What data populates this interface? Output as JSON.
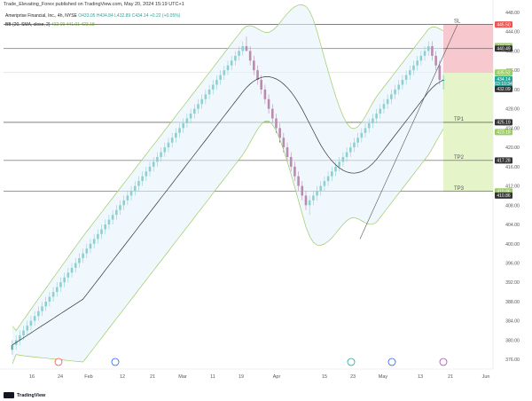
{
  "header": {
    "published": "Trade_Elevating_Forex published on TradingView.com, May 20, 2024 15:19 UTC+1",
    "symbol_line_name": "Ameriprise Financial, Inc., 4h, NYSE",
    "ohlc": "O433.05 H434.84 L432.89 C434.14 +0.22 (+0.05%)",
    "bb_line": "BB (20, SMA, close, 2)",
    "bb_values": "432.09 441.01 423.18"
  },
  "brand": {
    "label": "TradingView"
  },
  "colors": {
    "up": "#26a69a",
    "down": "#880e4f",
    "bb_band": "#9ccc65",
    "bb_mid": "#333333",
    "sl_zone": "#f8c8cf",
    "tp_zone": "#e6f5c9"
  },
  "levels": [
    {
      "name": "SL",
      "price": 445.5,
      "label": "SL"
    },
    {
      "name": "TP1",
      "price": 425.19,
      "label": "TP1"
    },
    {
      "name": "TP2",
      "price": 417.28,
      "label": "TP2"
    },
    {
      "name": "TP3",
      "price": 410.86,
      "label": "TP3"
    }
  ],
  "chart_data": {
    "type": "candlestick",
    "y_ticks": [
      376,
      380,
      384,
      388,
      392,
      396,
      400,
      404,
      408,
      412,
      416,
      420,
      424,
      428,
      432,
      436,
      440,
      444,
      448
    ],
    "y_tick_labels": [
      "376.00",
      "380.00",
      "384.00",
      "388.00",
      "392.00",
      "396.00",
      "400.00",
      "404.00",
      "408.00",
      "412.00",
      "416.00",
      "420.00",
      "424.00",
      "428.00",
      "432.00",
      "436.00",
      "440.00",
      "444.00",
      "448.00"
    ],
    "ylim": [
      374,
      448
    ],
    "x_labels": [
      "16",
      "24",
      "Feb",
      "12",
      "21",
      "Mar",
      "11",
      "19",
      "Apr",
      "15",
      "23",
      "May",
      "13",
      "21",
      "Jun"
    ],
    "price_labels": [
      {
        "text": "445.50",
        "price": 445.5,
        "color": "#ef5350"
      },
      {
        "text": "441.01",
        "price": 441.01,
        "color": "#9ccc65"
      },
      {
        "text": "440.49",
        "price": 440.49,
        "color": "#333333"
      },
      {
        "text": "435.52",
        "price": 435.52,
        "color": "#9ccc65"
      },
      {
        "text": "434.14",
        "price": 434.14,
        "color": "#26a69a"
      },
      {
        "text": "03:10:34",
        "price": 433.2,
        "color": "#26a69a"
      },
      {
        "text": "432.09",
        "price": 432.09,
        "color": "#333333"
      },
      {
        "text": "425.19",
        "price": 425.19,
        "color": "#333333"
      },
      {
        "text": "423.18",
        "price": 423.18,
        "color": "#9ccc65"
      },
      {
        "text": "417.28",
        "price": 417.28,
        "color": "#333333"
      },
      {
        "text": "410.86",
        "price": 410.86,
        "color": "#9ccc65"
      },
      {
        "text": "410.86",
        "price": 410.0,
        "color": "#333333"
      }
    ],
    "candles": [
      [
        378,
        380,
        377,
        379
      ],
      [
        379,
        381,
        378,
        380
      ],
      [
        380,
        382,
        379,
        381
      ],
      [
        381,
        383,
        380,
        382
      ],
      [
        382,
        384,
        381,
        383
      ],
      [
        383,
        385,
        382,
        384
      ],
      [
        384,
        386,
        383,
        385
      ],
      [
        385,
        387,
        384,
        386
      ],
      [
        386,
        388,
        385,
        387
      ],
      [
        387,
        389,
        386,
        388
      ],
      [
        388,
        390,
        387,
        389
      ],
      [
        389,
        391,
        388,
        390
      ],
      [
        390,
        392,
        389,
        391
      ],
      [
        391,
        393,
        390,
        392
      ],
      [
        392,
        394,
        391,
        393
      ],
      [
        393,
        395,
        392,
        394
      ],
      [
        394,
        396,
        393,
        395
      ],
      [
        395,
        397,
        394,
        396
      ],
      [
        396,
        398,
        395,
        397
      ],
      [
        397,
        399,
        396,
        398
      ],
      [
        398,
        400,
        397,
        399
      ],
      [
        399,
        401,
        398,
        400
      ],
      [
        400,
        402,
        399,
        401
      ],
      [
        401,
        403,
        400,
        402
      ],
      [
        402,
        404,
        401,
        403
      ],
      [
        403,
        405,
        402,
        404
      ],
      [
        404,
        406,
        403,
        405
      ],
      [
        405,
        407,
        404,
        406
      ],
      [
        406,
        408,
        405,
        407
      ],
      [
        407,
        409,
        406,
        408
      ],
      [
        408,
        410,
        407,
        409
      ],
      [
        409,
        411,
        408,
        410
      ],
      [
        410,
        412,
        409,
        411
      ],
      [
        411,
        413,
        410,
        412
      ],
      [
        412,
        414,
        411,
        413
      ],
      [
        413,
        415,
        412,
        414
      ],
      [
        414,
        416,
        413,
        415
      ],
      [
        415,
        417,
        414,
        416
      ],
      [
        416,
        418,
        415,
        417
      ],
      [
        417,
        419,
        416,
        418
      ],
      [
        418,
        420,
        417,
        419
      ],
      [
        419,
        421,
        418,
        420
      ],
      [
        420,
        422,
        419,
        421
      ],
      [
        421,
        423,
        420,
        422
      ],
      [
        422,
        424,
        421,
        423
      ],
      [
        423,
        425,
        422,
        424
      ],
      [
        424,
        426,
        423,
        425
      ],
      [
        425,
        427,
        424,
        426
      ],
      [
        426,
        428,
        425,
        427
      ],
      [
        427,
        429,
        426,
        428
      ],
      [
        428,
        430,
        427,
        429
      ],
      [
        429,
        431,
        428,
        430
      ],
      [
        430,
        432,
        429,
        431
      ],
      [
        431,
        433,
        430,
        432
      ],
      [
        432,
        434,
        431,
        433
      ],
      [
        433,
        435,
        432,
        434
      ],
      [
        434,
        436,
        433,
        435
      ],
      [
        435,
        437,
        434,
        436
      ],
      [
        436,
        438,
        435,
        437
      ],
      [
        437,
        439,
        436,
        438
      ],
      [
        438,
        440,
        437,
        439
      ],
      [
        439,
        441,
        438,
        440
      ],
      [
        440,
        442,
        439,
        441
      ],
      [
        441,
        443,
        440,
        440
      ],
      [
        440,
        441,
        437,
        438
      ],
      [
        438,
        439,
        435,
        436
      ],
      [
        436,
        437,
        433,
        434
      ],
      [
        434,
        435,
        431,
        432
      ],
      [
        432,
        433,
        429,
        430
      ],
      [
        430,
        431,
        427,
        428
      ],
      [
        428,
        429,
        425,
        426
      ],
      [
        426,
        427,
        423,
        424
      ],
      [
        424,
        425,
        421,
        422
      ],
      [
        422,
        423,
        419,
        420
      ],
      [
        420,
        421,
        417,
        418
      ],
      [
        418,
        419,
        415,
        416
      ],
      [
        416,
        417,
        413,
        414
      ],
      [
        414,
        415,
        411,
        412
      ],
      [
        412,
        413,
        409,
        410
      ],
      [
        410,
        411,
        407,
        408
      ],
      [
        408,
        410,
        406,
        409
      ],
      [
        409,
        411,
        408,
        410
      ],
      [
        410,
        412,
        409,
        411
      ],
      [
        411,
        413,
        410,
        412
      ],
      [
        412,
        414,
        411,
        413
      ],
      [
        413,
        415,
        412,
        414
      ],
      [
        414,
        416,
        413,
        415
      ],
      [
        415,
        417,
        414,
        416
      ],
      [
        416,
        418,
        415,
        417
      ],
      [
        417,
        419,
        416,
        418
      ],
      [
        418,
        420,
        417,
        419
      ],
      [
        419,
        421,
        418,
        420
      ],
      [
        420,
        422,
        419,
        421
      ],
      [
        421,
        423,
        420,
        422
      ],
      [
        422,
        424,
        421,
        423
      ],
      [
        423,
        425,
        422,
        424
      ],
      [
        424,
        426,
        423,
        425
      ],
      [
        425,
        427,
        424,
        426
      ],
      [
        426,
        428,
        425,
        427
      ],
      [
        427,
        429,
        426,
        428
      ],
      [
        428,
        430,
        427,
        429
      ],
      [
        429,
        431,
        428,
        430
      ],
      [
        430,
        432,
        429,
        431
      ],
      [
        431,
        433,
        430,
        432
      ],
      [
        432,
        434,
        431,
        433
      ],
      [
        433,
        435,
        432,
        434
      ],
      [
        434,
        436,
        433,
        435
      ],
      [
        435,
        437,
        434,
        436
      ],
      [
        436,
        438,
        435,
        437
      ],
      [
        437,
        439,
        436,
        438
      ],
      [
        438,
        440,
        437,
        439
      ],
      [
        439,
        441,
        438,
        440
      ],
      [
        440,
        442,
        439,
        441
      ],
      [
        441,
        442,
        438,
        439
      ],
      [
        439,
        440,
        436,
        437
      ],
      [
        437,
        438,
        433,
        434
      ],
      [
        434,
        435,
        432,
        434
      ]
    ]
  }
}
